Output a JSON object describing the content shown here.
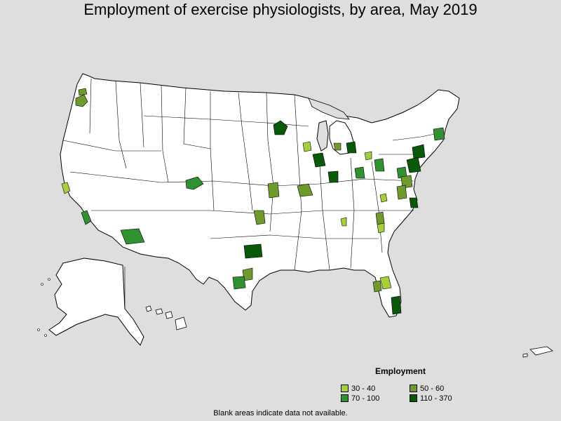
{
  "title": "Employment of exercise physiologists, by area, May 2019",
  "legend": {
    "title": "Employment",
    "items": [
      {
        "label": "30 - 40",
        "color": "#a7cf3c"
      },
      {
        "label": "50 - 60",
        "color": "#6f9a2c"
      },
      {
        "label": "70 - 100",
        "color": "#2f912f"
      },
      {
        "label": "110 - 370",
        "color": "#0a580a"
      }
    ]
  },
  "footnote": "Blank areas indicate data not available.",
  "colors": {
    "background": "#dedede",
    "land": "#ffffff",
    "border": "#000000"
  }
}
